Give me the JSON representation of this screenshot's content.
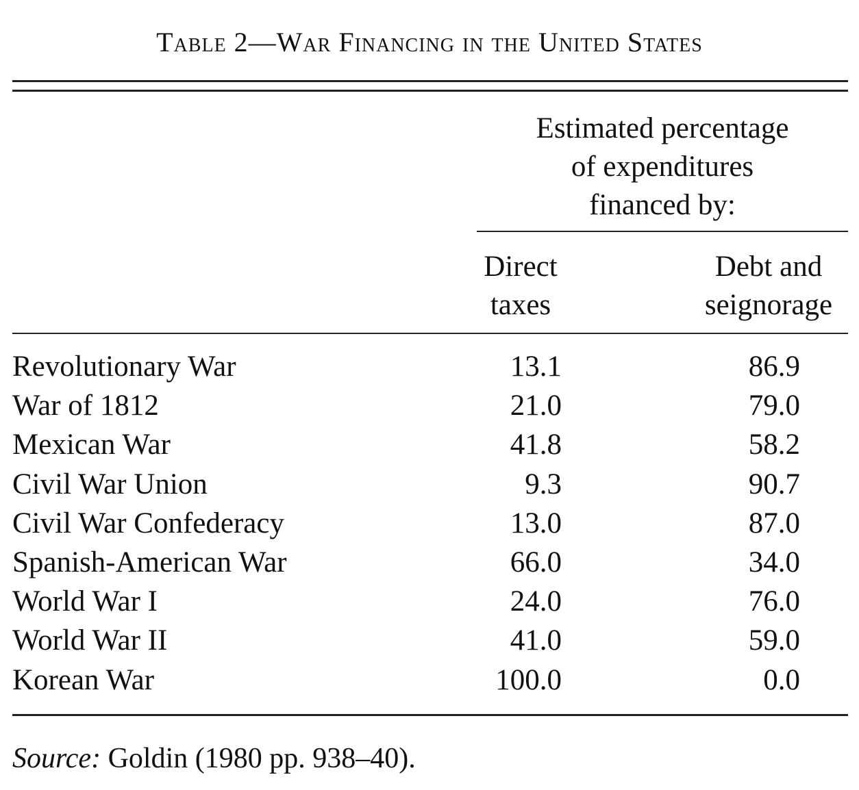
{
  "table": {
    "title": "Table 2—War Financing in the United States",
    "group_header": [
      "Estimated percentage",
      "of expenditures",
      "financed by:"
    ],
    "columns": [
      [
        "Direct",
        "taxes"
      ],
      [
        "Debt and",
        "seignorage"
      ]
    ],
    "rows": [
      {
        "label": "Revolutionary War",
        "direct_taxes": "13.1",
        "debt_and_seignorage": "86.9"
      },
      {
        "label": "War of 1812",
        "direct_taxes": "21.0",
        "debt_and_seignorage": "79.0"
      },
      {
        "label": "Mexican War",
        "direct_taxes": "41.8",
        "debt_and_seignorage": "58.2"
      },
      {
        "label": "Civil War Union",
        "direct_taxes": "9.3",
        "debt_and_seignorage": "90.7"
      },
      {
        "label": "Civil War Confederacy",
        "direct_taxes": "13.0",
        "debt_and_seignorage": "87.0"
      },
      {
        "label": "Spanish-American War",
        "direct_taxes": "66.0",
        "debt_and_seignorage": "34.0"
      },
      {
        "label": "World War I",
        "direct_taxes": "24.0",
        "debt_and_seignorage": "76.0"
      },
      {
        "label": "World War II",
        "direct_taxes": "41.0",
        "debt_and_seignorage": "59.0"
      },
      {
        "label": "Korean War",
        "direct_taxes": "100.0",
        "debt_and_seignorage": "0.0"
      }
    ],
    "source_label": "Source:",
    "source_text": " Goldin (1980 pp. 938–40)."
  }
}
